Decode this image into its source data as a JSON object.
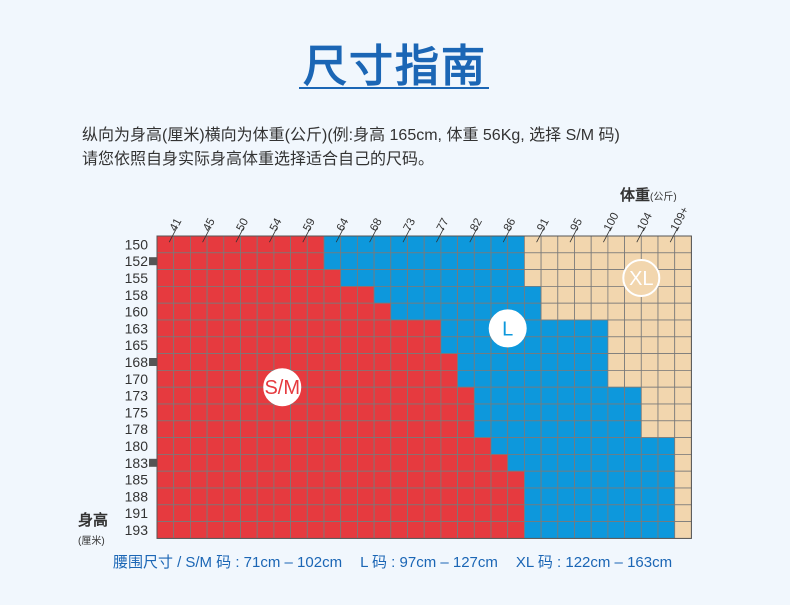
{
  "header": {
    "title": "尺寸指南",
    "desc_line1": "纵向为身高(厘米)横向为体重(公斤)(例:身高 165cm, 体重 56Kg, 选择 S/M 码)",
    "desc_line2": "请您依照自身实际身高体重选择适合自己的尺码。"
  },
  "chart_data": {
    "type": "heatmap",
    "x_title": "体重",
    "x_unit": "(公斤)",
    "y_title": "身高",
    "y_unit": "(厘米)",
    "x_ticks": [
      "41",
      "45",
      "50",
      "54",
      "59",
      "64",
      "68",
      "73",
      "77",
      "82",
      "86",
      "91",
      "95",
      "100",
      "104",
      "109+"
    ],
    "y_ticks": [
      "150",
      "152",
      "155",
      "158",
      "160",
      "163",
      "165",
      "168",
      "170",
      "173",
      "175",
      "178",
      "180",
      "183",
      "185",
      "188",
      "191",
      "193"
    ],
    "columns": 32,
    "sizes": [
      {
        "name": "S/M",
        "color": "#e63a3f"
      },
      {
        "name": "L",
        "color": "#0d98dc"
      },
      {
        "name": "XL",
        "color": "#f2d6ae"
      }
    ],
    "boundaries": [
      {
        "height": "150",
        "sm_cols": 10,
        "l_end": 22
      },
      {
        "height": "152",
        "sm_cols": 10,
        "l_end": 22
      },
      {
        "height": "155",
        "sm_cols": 11,
        "l_end": 22
      },
      {
        "height": "158",
        "sm_cols": 13,
        "l_end": 23
      },
      {
        "height": "160",
        "sm_cols": 14,
        "l_end": 23
      },
      {
        "height": "163",
        "sm_cols": 17,
        "l_end": 27
      },
      {
        "height": "165",
        "sm_cols": 17,
        "l_end": 27
      },
      {
        "height": "168",
        "sm_cols": 18,
        "l_end": 27
      },
      {
        "height": "170",
        "sm_cols": 18,
        "l_end": 27
      },
      {
        "height": "173",
        "sm_cols": 19,
        "l_end": 29
      },
      {
        "height": "175",
        "sm_cols": 19,
        "l_end": 29
      },
      {
        "height": "178",
        "sm_cols": 19,
        "l_end": 29
      },
      {
        "height": "180",
        "sm_cols": 20,
        "l_end": 31
      },
      {
        "height": "183",
        "sm_cols": 21,
        "l_end": 31
      },
      {
        "height": "185",
        "sm_cols": 22,
        "l_end": 31
      },
      {
        "height": "188",
        "sm_cols": 22,
        "l_end": 31
      },
      {
        "height": "191",
        "sm_cols": 22,
        "l_end": 31
      },
      {
        "height": "193",
        "sm_cols": 22,
        "l_end": 31
      }
    ],
    "marked_heights": [
      "152",
      "168",
      "183"
    ],
    "size_labels": [
      {
        "text": "S/M",
        "col": 7.5,
        "row": 9
      },
      {
        "text": "L",
        "col": 21,
        "row": 5.5
      },
      {
        "text": "XL",
        "col": 29,
        "row": 2.5
      }
    ]
  },
  "legend": {
    "waist_title": "腰围尺寸 /",
    "sm": "S/M 码 : 71cm – 102cm",
    "l": "L 码 : 97cm – 127cm",
    "xl": "XL 码 : 122cm – 163cm"
  },
  "colors": {
    "accent": "#1b66b5",
    "grid_line": "#7a7a7a",
    "label_ring": "#ffffff"
  }
}
